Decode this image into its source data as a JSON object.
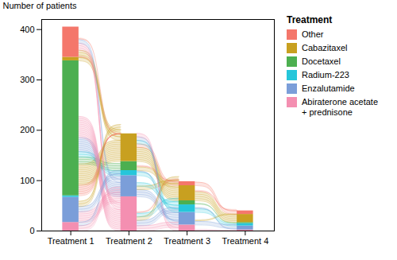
{
  "chart_data": {
    "type": "bar",
    "stacked": true,
    "categories": [
      "Treatment 1",
      "Treatment 2",
      "Treatment 3",
      "Treatment 4"
    ],
    "series": [
      {
        "name": "Abiraterone acetate\n+ prednisone",
        "color": "#F48FB1",
        "values": [
          17,
          68,
          12,
          2
        ]
      },
      {
        "name": "Enzalutamide",
        "color": "#7B9ED9",
        "values": [
          50,
          42,
          25,
          8
        ]
      },
      {
        "name": "Radium-223",
        "color": "#26C6DA",
        "values": [
          3,
          10,
          15,
          5
        ]
      },
      {
        "name": "Docetaxel",
        "color": "#4CAF50",
        "values": [
          268,
          18,
          8,
          2
        ]
      },
      {
        "name": "Cabazitaxel",
        "color": "#C8A020",
        "values": [
          7,
          55,
          30,
          16
        ]
      },
      {
        "name": "Other",
        "color": "#F4776B",
        "values": [
          60,
          0,
          8,
          7
        ]
      }
    ],
    "flows": [
      {
        "from": "Treatment 1",
        "to": "Treatment 2",
        "links": [
          {
            "source": "Docetaxel",
            "target": "Other",
            "patients": 6,
            "source_height": 21,
            "target_height": 0
          },
          {
            "source": "Docetaxel",
            "target": "Cabazitaxel",
            "patients": 12,
            "source_height": 42,
            "target_height": 42
          },
          {
            "source": "Docetaxel",
            "target": "Docetaxel",
            "patients": 4,
            "source_height": 14,
            "target_height": 14
          },
          {
            "source": "Docetaxel",
            "target": "Radium-223",
            "patients": 3,
            "source_height": 10.5,
            "target_height": 9
          },
          {
            "source": "Docetaxel",
            "target": "Enzalutamide",
            "patients": 8,
            "source_height": 28,
            "target_height": 28
          },
          {
            "source": "Docetaxel",
            "target": "Abiraterone acetate\n+ prednisone",
            "patients": 12,
            "source_height": 42,
            "target_height": 42
          },
          {
            "source": "Cabazitaxel",
            "target": "Cabazitaxel",
            "patients": 2,
            "source_height": 6.3,
            "target_height": 7
          },
          {
            "source": "Cabazitaxel",
            "target": "Other",
            "patients": 1,
            "source_height": 3.5,
            "target_height": 0
          },
          {
            "source": "Other",
            "target": "Cabazitaxel",
            "patients": 4,
            "source_height": 14,
            "target_height": 14
          },
          {
            "source": "Other",
            "target": "Abiraterone acetate\n+ prednisone",
            "patients": 4,
            "source_height": 14,
            "target_height": 14
          },
          {
            "source": "Other",
            "target": "Enzalutamide",
            "patients": 2,
            "source_height": 7,
            "target_height": 7
          },
          {
            "source": "Other",
            "target": "Other",
            "patients": 1,
            "source_height": 3.5,
            "target_height": 0
          },
          {
            "source": "Enzalutamide",
            "target": "Abiraterone acetate\n+ prednisone",
            "patients": 6,
            "source_height": 21,
            "target_height": 21
          },
          {
            "source": "Enzalutamide",
            "target": "Enzalutamide",
            "patients": 3,
            "source_height": 10.5,
            "target_height": 10.5
          },
          {
            "source": "Enzalutamide",
            "target": "Cabazitaxel",
            "patients": 3,
            "source_height": 10.5,
            "target_height": 10.5
          },
          {
            "source": "Abiraterone acetate\n+ prednisone",
            "target": "Abiraterone acetate\n+ prednisone",
            "patients": 3,
            "source_height": 10.5,
            "target_height": 10.5
          },
          {
            "source": "Abiraterone acetate\n+ prednisone",
            "target": "Enzalutamide",
            "patients": 2,
            "source_height": 7,
            "target_height": 7
          }
        ]
      },
      {
        "from": "Treatment 2",
        "to": "Treatment 3",
        "links": [
          {
            "source": "Cabazitaxel",
            "target": "Cabazitaxel",
            "patients": 8,
            "source_height": 28,
            "target_height": 27
          },
          {
            "source": "Cabazitaxel",
            "target": "Other",
            "patients": 2,
            "source_height": 7,
            "target_height": 7
          },
          {
            "source": "Cabazitaxel",
            "target": "Radium-223",
            "patients": 2,
            "source_height": 7,
            "target_height": 7
          },
          {
            "source": "Cabazitaxel",
            "target": "Enzalutamide",
            "patients": 2,
            "source_height": 7,
            "target_height": 7
          },
          {
            "source": "Cabazitaxel",
            "target": "Abiraterone acetate\n+ prednisone",
            "patients": 2,
            "source_height": 7,
            "target_height": 7
          },
          {
            "source": "Docetaxel",
            "target": "Cabazitaxel",
            "patients": 2,
            "source_height": 7,
            "target_height": 7
          },
          {
            "source": "Docetaxel",
            "target": "Other",
            "patients": 1,
            "source_height": 3.5,
            "target_height": 3.5
          },
          {
            "source": "Radium-223",
            "target": "Radium-223",
            "patients": 2,
            "source_height": 7,
            "target_height": 7
          },
          {
            "source": "Radium-223",
            "target": "Enzalutamide",
            "patients": 1,
            "source_height": 3.5,
            "target_height": 3.5
          },
          {
            "source": "Enzalutamide",
            "target": "Enzalutamide",
            "patients": 4,
            "source_height": 14,
            "target_height": 14
          },
          {
            "source": "Enzalutamide",
            "target": "Cabazitaxel",
            "patients": 2,
            "source_height": 7,
            "target_height": 7
          },
          {
            "source": "Enzalutamide",
            "target": "Radium-223",
            "patients": 2,
            "source_height": 7,
            "target_height": 7
          },
          {
            "source": "Abiraterone acetate\n+ prednisone",
            "target": "Abiraterone acetate\n+ prednisone",
            "patients": 3,
            "source_height": 10.5,
            "target_height": 10.5
          },
          {
            "source": "Abiraterone acetate\n+ prednisone",
            "target": "Enzalutamide",
            "patients": 3,
            "source_height": 10.5,
            "target_height": 10.5
          },
          {
            "source": "Abiraterone acetate\n+ prednisone",
            "target": "Cabazitaxel",
            "patients": 2,
            "source_height": 7,
            "target_height": 7
          },
          {
            "source": "Abiraterone acetate\n+ prednisone",
            "target": "Radium-223",
            "patients": 2,
            "source_height": 7,
            "target_height": 7
          },
          {
            "source": "Abiraterone acetate\n+ prednisone",
            "target": "Other",
            "patients": 1,
            "source_height": 3.5,
            "target_height": 3.5
          }
        ]
      },
      {
        "from": "Treatment 3",
        "to": "Treatment 4",
        "links": [
          {
            "source": "Other",
            "target": "Other",
            "patients": 2,
            "source_height": 7,
            "target_height": 6.3
          },
          {
            "source": "Cabazitaxel",
            "target": "Cabazitaxel",
            "patients": 5,
            "source_height": 17.5,
            "target_height": 14.4
          },
          {
            "source": "Cabazitaxel",
            "target": "Other",
            "patients": 1,
            "source_height": 3.5,
            "target_height": 3.5
          },
          {
            "source": "Radium-223",
            "target": "Radium-223",
            "patients": 2,
            "source_height": 7,
            "target_height": 4.5
          },
          {
            "source": "Radium-223",
            "target": "Enzalutamide",
            "patients": 1,
            "source_height": 3.5,
            "target_height": 3.5
          },
          {
            "source": "Enzalutamide",
            "target": "Enzalutamide",
            "patients": 2,
            "source_height": 7,
            "target_height": 7
          },
          {
            "source": "Enzalutamide",
            "target": "Cabazitaxel",
            "patients": 1,
            "source_height": 3.5,
            "target_height": 3.5
          },
          {
            "source": "Abiraterone acetate\n+ prednisone",
            "target": "Abiraterone acetate\n+ prednisone",
            "patients": 1,
            "source_height": 3.5,
            "target_height": 1.8
          },
          {
            "source": "Docetaxel",
            "target": "Docetaxel",
            "patients": 1,
            "source_height": 3.5,
            "target_height": 1.8
          }
        ]
      }
    ],
    "ylim": [
      0,
      420
    ],
    "yticks": [
      0,
      100,
      200,
      300,
      400
    ],
    "ylabel": "Number of patients",
    "grid": false,
    "legend": "right",
    "legend_title": "Treatment"
  }
}
